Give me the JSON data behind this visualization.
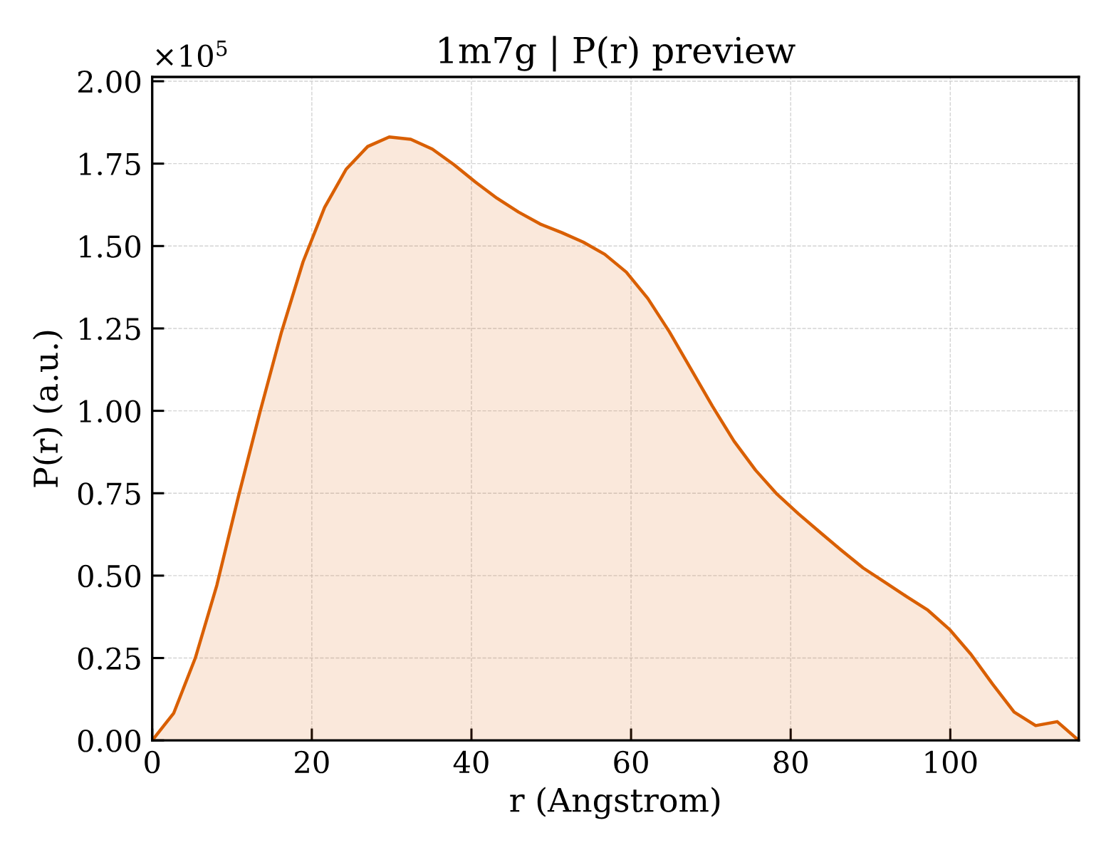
{
  "chart_data": {
    "type": "area",
    "title": "1m7g | P(r) preview",
    "xlabel": "r (Angstrom)",
    "ylabel": "P(r) (a.u.)",
    "annotations": [
      "×10$^{5}$"
    ],
    "x": [
      0,
      2.7,
      5.4,
      8.1,
      10.8,
      13.5,
      16.2,
      18.9,
      21.6,
      24.3,
      27.0,
      29.7,
      32.4,
      35.1,
      37.8,
      40.5,
      43.2,
      45.9,
      48.6,
      51.3,
      54.0,
      56.7,
      59.4,
      62.1,
      64.8,
      67.5,
      70.2,
      72.9,
      75.6,
      78.3,
      81.0,
      83.7,
      86.4,
      89.1,
      91.8,
      94.5,
      97.2,
      99.9,
      102.6,
      105.3,
      108.0,
      110.7,
      113.4,
      116.1
    ],
    "series": [
      {
        "color": "#d95f02",
        "values": [
          0,
          0.083,
          0.25,
          0.471,
          0.74,
          0.996,
          1.239,
          1.452,
          1.617,
          1.733,
          1.802,
          1.831,
          1.824,
          1.794,
          1.747,
          1.694,
          1.645,
          1.603,
          1.567,
          1.541,
          1.512,
          1.475,
          1.421,
          1.341,
          1.24,
          1.127,
          1.014,
          0.908,
          0.82,
          0.747,
          0.687,
          0.631,
          0.576,
          0.523,
          0.48,
          0.437,
          0.395,
          0.337,
          0.261,
          0.171,
          0.086,
          0.045,
          0.057,
          0
        ]
      }
    ],
    "xlim": [
      0,
      116.1
    ],
    "ylim": [
      0,
      2.013
    ],
    "xticks": [
      0,
      20,
      40,
      60,
      80,
      100
    ],
    "yticks": [
      {
        "value": 0,
        "label": "0.00"
      },
      {
        "value": 0.25,
        "label": "0.25"
      },
      {
        "value": 0.5,
        "label": "0.50"
      },
      {
        "value": 0.75,
        "label": "0.75"
      },
      {
        "value": 1.0,
        "label": "1.00"
      },
      {
        "value": 1.25,
        "label": "1.25"
      },
      {
        "value": 1.5,
        "label": "1.50"
      },
      {
        "value": 1.75,
        "label": "1.75"
      },
      {
        "value": 2.0,
        "label": "2.00"
      }
    ],
    "grid": true
  }
}
